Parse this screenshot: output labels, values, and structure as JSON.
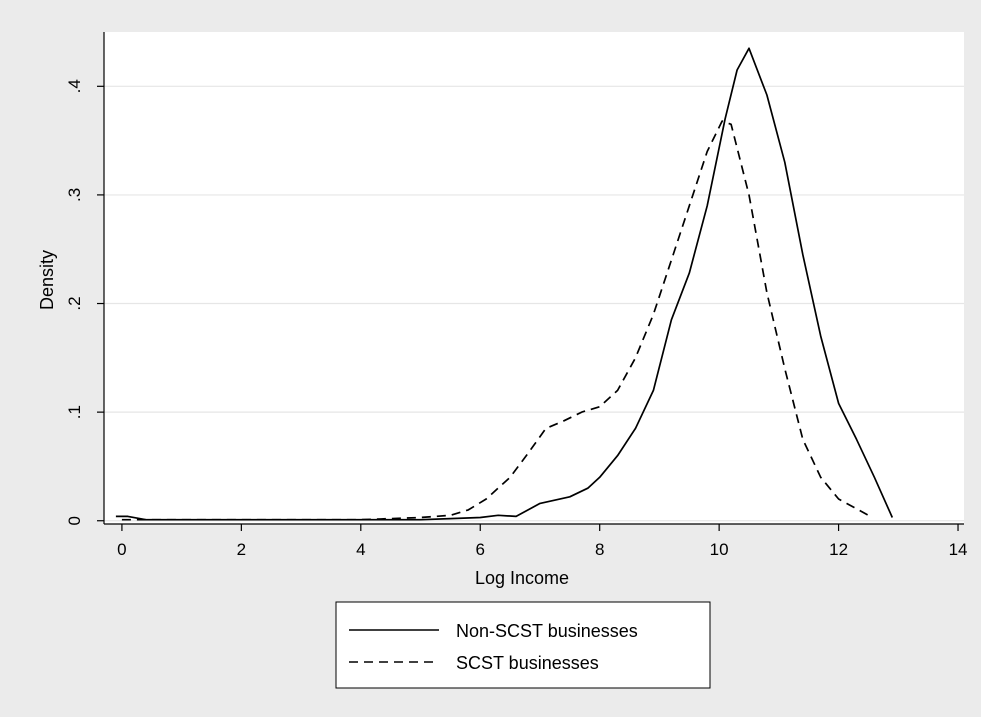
{
  "chart_data": {
    "type": "line",
    "title": "",
    "xlabel": "Log Income",
    "ylabel": "Density",
    "xlim": [
      -0.3,
      14.1
    ],
    "ylim": [
      -0.003,
      0.45
    ],
    "x_ticks": [
      0,
      2,
      4,
      6,
      8,
      10,
      12,
      14
    ],
    "y_ticks": [
      0,
      0.1,
      0.2,
      0.3,
      0.4
    ],
    "x_tick_labels": [
      "0",
      "2",
      "4",
      "6",
      "8",
      "10",
      "12",
      "14"
    ],
    "y_tick_labels": [
      "0",
      ".1",
      ".2",
      ".3",
      ".4"
    ],
    "grid": true,
    "legend_position": "bottom",
    "series": [
      {
        "name": "Non-SCST businesses",
        "style": "solid",
        "color": "#000000",
        "x": [
          -0.1,
          0.1,
          0.4,
          1,
          2,
          3,
          4,
          5,
          5.5,
          6,
          6.3,
          6.6,
          7,
          7.5,
          7.8,
          8,
          8.3,
          8.6,
          8.9,
          9.2,
          9.5,
          9.8,
          10.1,
          10.3,
          10.5,
          10.8,
          11.1,
          11.4,
          11.7,
          12,
          12.3,
          12.6,
          12.9
        ],
        "y": [
          0.004,
          0.004,
          0.001,
          0.001,
          0.001,
          0.001,
          0.001,
          0.001,
          0.002,
          0.003,
          0.005,
          0.004,
          0.016,
          0.022,
          0.03,
          0.04,
          0.06,
          0.085,
          0.12,
          0.185,
          0.228,
          0.29,
          0.37,
          0.415,
          0.435,
          0.392,
          0.33,
          0.245,
          0.17,
          0.108,
          0.075,
          0.04,
          0.003
        ]
      },
      {
        "name": "SCST businesses",
        "style": "dashed",
        "color": "#000000",
        "x": [
          0,
          0.5,
          1,
          2,
          3,
          4,
          4.5,
          5,
          5.5,
          5.8,
          6.1,
          6.5,
          6.8,
          7.1,
          7.4,
          7.7,
          8,
          8.3,
          8.6,
          8.9,
          9.2,
          9.5,
          9.8,
          10.05,
          10.2,
          10.5,
          10.8,
          11.1,
          11.4,
          11.7,
          12,
          12.5
        ],
        "y": [
          0.001,
          0.001,
          0.001,
          0.001,
          0.001,
          0.001,
          0.002,
          0.003,
          0.005,
          0.01,
          0.02,
          0.04,
          0.062,
          0.085,
          0.092,
          0.1,
          0.105,
          0.12,
          0.15,
          0.19,
          0.24,
          0.29,
          0.34,
          0.368,
          0.365,
          0.3,
          0.21,
          0.14,
          0.075,
          0.04,
          0.02,
          0.005
        ]
      }
    ]
  }
}
